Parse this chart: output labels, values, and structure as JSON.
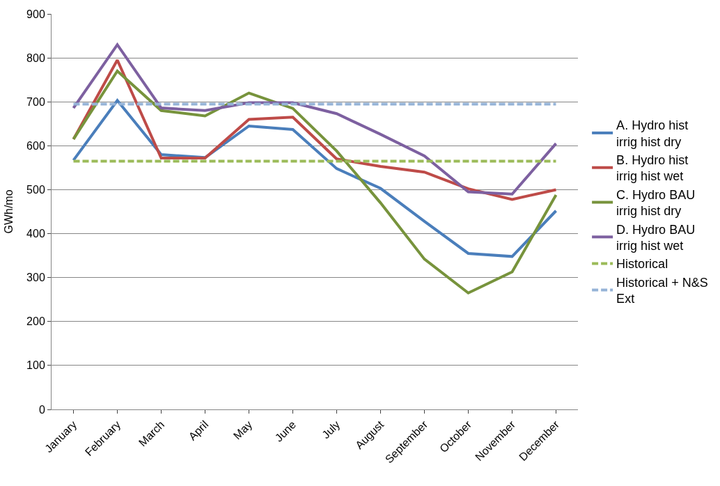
{
  "chart_data": {
    "type": "line",
    "ylabel": "GWh/mo",
    "categories": [
      "January",
      "February",
      "March",
      "April",
      "May",
      "June",
      "July",
      "August",
      "September",
      "October",
      "November",
      "December"
    ],
    "series": [
      {
        "name": "A. Hydro hist irrig hist dry",
        "color": "#4a7ebb",
        "values": [
          567,
          703,
          580,
          573,
          645,
          637,
          548,
          503,
          428,
          355,
          348,
          452
        ]
      },
      {
        "name": "B. Hydro hist irrig hist wet",
        "color": "#be4b48",
        "values": [
          615,
          795,
          572,
          572,
          660,
          665,
          570,
          553,
          540,
          502,
          478,
          500
        ]
      },
      {
        "name": "C. Hydro BAU irrig hist dry",
        "color": "#77933c",
        "values": [
          615,
          770,
          680,
          668,
          720,
          685,
          588,
          470,
          342,
          265,
          313,
          488
        ]
      },
      {
        "name": "D. Hydro BAU irrig hist wet",
        "color": "#7d60a0",
        "values": [
          686,
          830,
          686,
          680,
          698,
          698,
          673,
          626,
          577,
          495,
          490,
          605
        ]
      },
      {
        "name": "Historical",
        "color": "#9bbb59",
        "line_style": "dashed",
        "values": [
          565,
          565,
          565,
          565,
          565,
          565,
          565,
          565,
          565,
          565,
          565,
          565
        ]
      },
      {
        "name": "Historical + N&S Ext",
        "color": "#95b3d7",
        "line_style": "dashed",
        "values": [
          695,
          695,
          695,
          695,
          695,
          695,
          695,
          695,
          695,
          695,
          695,
          695
        ]
      }
    ],
    "ylim": [
      0,
      900
    ],
    "yticks": [
      0,
      100,
      200,
      300,
      400,
      500,
      600,
      700,
      800,
      900
    ],
    "grid": "y",
    "legend": "right",
    "line_style": "solid",
    "marker": "none"
  }
}
